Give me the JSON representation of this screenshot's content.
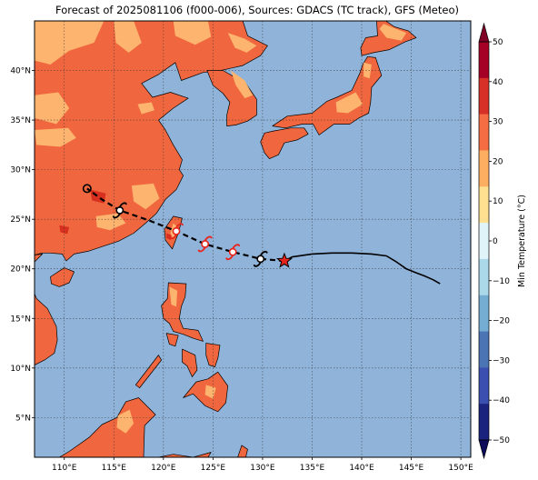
{
  "title": "Forecast of 2025081106 (f000-006), Sources: GDACS (TC track), GFS (Meteo)",
  "map": {
    "lon_range": [
      107,
      151
    ],
    "lat_range": [
      1,
      45
    ],
    "lon_ticks": [
      {
        "value": 110,
        "label": "110°E"
      },
      {
        "value": 115,
        "label": "115°E"
      },
      {
        "value": 120,
        "label": "120°E"
      },
      {
        "value": 125,
        "label": "125°E"
      },
      {
        "value": 130,
        "label": "130°E"
      },
      {
        "value": 135,
        "label": "135°E"
      },
      {
        "value": 140,
        "label": "140°E"
      },
      {
        "value": 145,
        "label": "145°E"
      },
      {
        "value": 150,
        "label": "150°E"
      }
    ],
    "lat_ticks": [
      {
        "value": 5,
        "label": "5°N"
      },
      {
        "value": 10,
        "label": "10°N"
      },
      {
        "value": 15,
        "label": "15°N"
      },
      {
        "value": 20,
        "label": "20°N"
      },
      {
        "value": 25,
        "label": "25°N"
      },
      {
        "value": 30,
        "label": "30°N"
      },
      {
        "value": 35,
        "label": "35°N"
      },
      {
        "value": 40,
        "label": "40°N"
      }
    ],
    "colors": {
      "ocean": "#8fb3d9",
      "land_warm": "#f0673f",
      "land_mild": "#fdb46e",
      "land_hot": "#d7301f",
      "coast": "#000000",
      "grid": "#333333"
    }
  },
  "track": {
    "observed": [
      [
        132.2,
        20.8
      ],
      [
        133.0,
        21.2
      ],
      [
        135.0,
        21.5
      ],
      [
        137.0,
        21.6
      ],
      [
        139.0,
        21.6
      ],
      [
        141.0,
        21.5
      ],
      [
        142.5,
        21.3
      ],
      [
        143.5,
        20.7
      ],
      [
        144.5,
        20.0
      ],
      [
        145.5,
        19.6
      ],
      [
        146.3,
        19.3
      ],
      [
        147.2,
        18.9
      ],
      [
        147.9,
        18.5
      ]
    ],
    "forecast": [
      [
        132.2,
        20.8
      ],
      [
        129.8,
        21.0
      ],
      [
        127.0,
        21.7
      ],
      [
        124.2,
        22.5
      ],
      [
        121.3,
        23.8
      ],
      [
        118.5,
        24.9
      ],
      [
        115.6,
        25.9
      ],
      [
        113.8,
        27.0
      ],
      [
        112.3,
        28.1
      ]
    ],
    "current_position": [
      132.2,
      20.8
    ],
    "symbols": [
      {
        "lon": 129.8,
        "lat": 21.0,
        "kind": "storm",
        "color": "#000000"
      },
      {
        "lon": 127.0,
        "lat": 21.7,
        "kind": "storm",
        "color": "#e8251c"
      },
      {
        "lon": 124.2,
        "lat": 22.5,
        "kind": "storm",
        "color": "#e8251c"
      },
      {
        "lon": 121.3,
        "lat": 23.8,
        "kind": "storm",
        "color": "#e8251c"
      },
      {
        "lon": 115.6,
        "lat": 25.9,
        "kind": "storm",
        "color": "#000000"
      },
      {
        "lon": 112.3,
        "lat": 28.1,
        "kind": "depression",
        "color": "#000000"
      }
    ]
  },
  "colorbar": {
    "label": "Min Temperature (°C)",
    "ticks": [
      -50,
      -40,
      -30,
      -20,
      -10,
      0,
      10,
      20,
      30,
      40,
      50
    ],
    "colors": [
      "#1a237e",
      "#3a4fb0",
      "#4a74b4",
      "#74add1",
      "#abd9e9",
      "#e0f3f8",
      "#fee090",
      "#fdae61",
      "#f46d43",
      "#d73027",
      "#a50026"
    ],
    "under_color": "#0d0d5c",
    "over_color": "#800026"
  }
}
